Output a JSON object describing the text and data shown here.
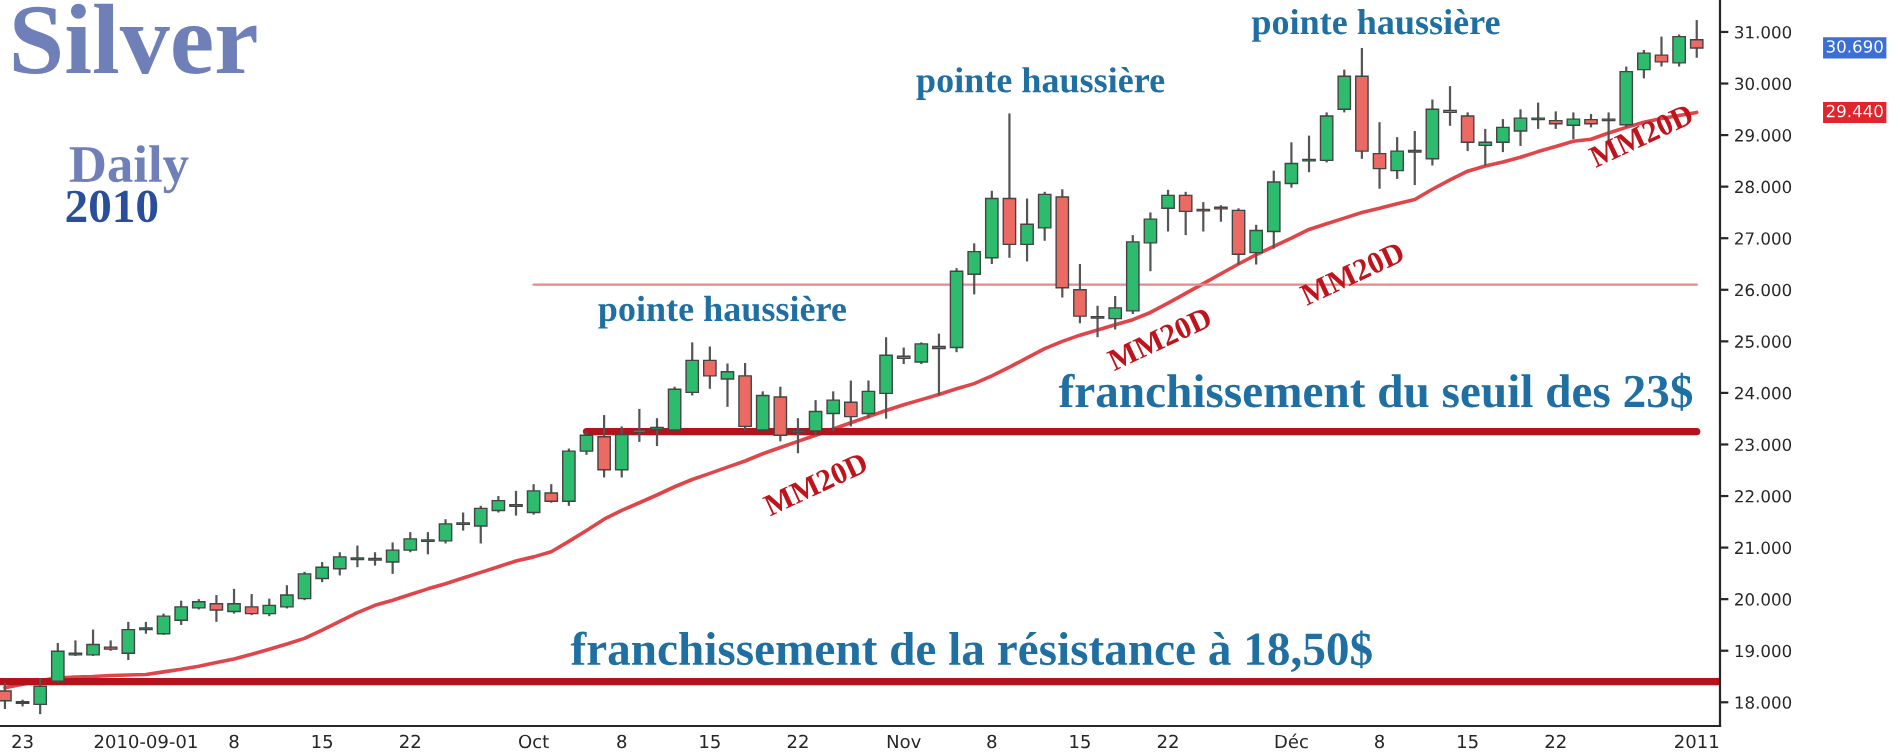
{
  "chart_data": {
    "type": "candlestick",
    "title": "Silver",
    "subtitle": "Daily",
    "categories": [
      null,
      "23",
      null,
      null,
      null,
      null,
      null,
      null,
      "2010-09-01",
      null,
      null,
      null,
      null,
      "8",
      null,
      null,
      null,
      null,
      "15",
      null,
      null,
      null,
      null,
      "22",
      null,
      null,
      null,
      null,
      null,
      null,
      "Oct",
      null,
      null,
      null,
      null,
      "8",
      null,
      null,
      null,
      null,
      "15",
      null,
      null,
      null,
      null,
      "22",
      null,
      null,
      null,
      null,
      null,
      "Nov",
      null,
      null,
      null,
      null,
      "8",
      null,
      null,
      null,
      null,
      "15",
      null,
      null,
      null,
      null,
      "22",
      null,
      null,
      null,
      null,
      null,
      null,
      "Déc",
      null,
      null,
      null,
      null,
      "8",
      null,
      null,
      null,
      null,
      "15",
      null,
      null,
      null,
      null,
      "22",
      null,
      null,
      null,
      null,
      null,
      null,
      null,
      "2011"
    ],
    "ohlc": [
      [
        18.22,
        18.38,
        17.87,
        18.03
      ],
      [
        17.98,
        18.05,
        17.92,
        18.0
      ],
      [
        17.96,
        18.47,
        17.77,
        18.31
      ],
      [
        18.41,
        19.15,
        18.38,
        18.99
      ],
      [
        18.92,
        19.2,
        18.9,
        18.94
      ],
      [
        18.92,
        19.41,
        18.9,
        19.12
      ],
      [
        19.07,
        19.2,
        19.0,
        19.03
      ],
      [
        18.95,
        19.56,
        18.82,
        19.41
      ],
      [
        19.41,
        19.56,
        19.33,
        19.43
      ],
      [
        19.33,
        19.72,
        19.31,
        19.67
      ],
      [
        19.59,
        19.97,
        19.5,
        19.85
      ],
      [
        19.83,
        20.0,
        19.8,
        19.95
      ],
      [
        19.91,
        20.08,
        19.56,
        19.79
      ],
      [
        19.76,
        20.2,
        19.72,
        19.91
      ],
      [
        19.85,
        20.1,
        19.69,
        19.72
      ],
      [
        19.72,
        20.01,
        19.67,
        19.88
      ],
      [
        19.85,
        20.27,
        19.82,
        20.08
      ],
      [
        20.01,
        20.53,
        19.98,
        20.49
      ],
      [
        20.4,
        20.72,
        20.33,
        20.62
      ],
      [
        20.59,
        20.91,
        20.46,
        20.82
      ],
      [
        20.77,
        21.04,
        20.62,
        20.79
      ],
      [
        20.78,
        20.91,
        20.65,
        20.76
      ],
      [
        20.72,
        21.1,
        20.49,
        20.95
      ],
      [
        20.95,
        21.3,
        20.91,
        21.17
      ],
      [
        21.12,
        21.3,
        20.87,
        21.14
      ],
      [
        21.13,
        21.55,
        21.08,
        21.46
      ],
      [
        21.45,
        21.68,
        21.33,
        21.47
      ],
      [
        21.42,
        21.81,
        21.08,
        21.76
      ],
      [
        21.72,
        22.0,
        21.68,
        21.91
      ],
      [
        21.83,
        22.1,
        21.62,
        21.8
      ],
      [
        21.68,
        22.23,
        21.64,
        22.1
      ],
      [
        22.06,
        22.23,
        21.87,
        21.9
      ],
      [
        21.9,
        22.92,
        21.81,
        22.87
      ],
      [
        22.87,
        23.25,
        22.8,
        23.18
      ],
      [
        23.15,
        23.57,
        22.36,
        22.51
      ],
      [
        22.51,
        23.35,
        22.36,
        23.19
      ],
      [
        23.28,
        23.69,
        23.05,
        23.24
      ],
      [
        23.29,
        23.51,
        22.97,
        23.33
      ],
      [
        23.28,
        24.12,
        23.26,
        24.07
      ],
      [
        24.01,
        24.98,
        23.95,
        24.63
      ],
      [
        24.63,
        24.9,
        24.08,
        24.33
      ],
      [
        24.27,
        24.57,
        23.73,
        24.41
      ],
      [
        24.33,
        24.58,
        23.27,
        23.35
      ],
      [
        23.28,
        24.03,
        23.26,
        23.95
      ],
      [
        23.92,
        24.12,
        23.06,
        23.18
      ],
      [
        23.24,
        23.51,
        22.83,
        23.27
      ],
      [
        23.26,
        23.86,
        23.18,
        23.64
      ],
      [
        23.6,
        24.03,
        23.26,
        23.86
      ],
      [
        23.82,
        24.24,
        23.35,
        23.54
      ],
      [
        23.6,
        24.24,
        23.51,
        24.03
      ],
      [
        23.99,
        25.08,
        23.5,
        24.73
      ],
      [
        24.71,
        24.88,
        24.56,
        24.67
      ],
      [
        24.6,
        24.98,
        24.56,
        24.95
      ],
      [
        24.9,
        25.15,
        23.95,
        24.86
      ],
      [
        24.88,
        26.42,
        24.79,
        26.36
      ],
      [
        26.3,
        26.9,
        25.91,
        26.74
      ],
      [
        26.62,
        27.92,
        26.5,
        27.77
      ],
      [
        27.77,
        29.42,
        26.62,
        26.88
      ],
      [
        26.88,
        27.77,
        26.55,
        27.27
      ],
      [
        27.2,
        27.9,
        26.95,
        27.85
      ],
      [
        27.8,
        27.95,
        25.85,
        26.04
      ],
      [
        26.0,
        26.5,
        25.35,
        25.49
      ],
      [
        25.45,
        25.69,
        25.08,
        25.47
      ],
      [
        25.44,
        25.88,
        25.23,
        25.65
      ],
      [
        25.59,
        27.06,
        25.53,
        26.93
      ],
      [
        26.91,
        27.5,
        26.36,
        27.37
      ],
      [
        27.58,
        27.94,
        27.13,
        27.83
      ],
      [
        27.83,
        27.9,
        27.06,
        27.52
      ],
      [
        27.55,
        27.7,
        27.13,
        27.53
      ],
      [
        27.58,
        27.64,
        27.32,
        27.57
      ],
      [
        27.54,
        27.58,
        26.49,
        26.69
      ],
      [
        26.72,
        27.26,
        26.49,
        27.15
      ],
      [
        27.13,
        28.31,
        26.8,
        28.09
      ],
      [
        28.06,
        28.86,
        27.98,
        28.45
      ],
      [
        28.5,
        28.99,
        28.28,
        28.52
      ],
      [
        28.51,
        29.44,
        28.47,
        29.37
      ],
      [
        29.5,
        30.27,
        29.44,
        30.14
      ],
      [
        30.14,
        30.69,
        28.54,
        28.69
      ],
      [
        28.64,
        29.25,
        27.96,
        28.35
      ],
      [
        28.31,
        28.96,
        28.15,
        28.69
      ],
      [
        28.67,
        29.08,
        28.03,
        28.7
      ],
      [
        28.54,
        29.69,
        28.41,
        29.5
      ],
      [
        29.48,
        29.95,
        29.18,
        29.44
      ],
      [
        29.37,
        29.44,
        28.69,
        28.86
      ],
      [
        28.8,
        29.12,
        28.41,
        28.86
      ],
      [
        28.86,
        29.31,
        28.67,
        29.15
      ],
      [
        29.08,
        29.5,
        28.79,
        29.33
      ],
      [
        29.3,
        29.63,
        29.12,
        29.32
      ],
      [
        29.28,
        29.46,
        29.12,
        29.22
      ],
      [
        29.19,
        29.44,
        28.92,
        29.31
      ],
      [
        29.3,
        29.41,
        29.15,
        29.22
      ],
      [
        29.28,
        29.44,
        28.8,
        29.3
      ],
      [
        29.2,
        30.33,
        29.15,
        30.23
      ],
      [
        30.27,
        30.65,
        30.1,
        30.59
      ],
      [
        30.55,
        30.91,
        30.33,
        30.42
      ],
      [
        30.4,
        30.95,
        30.33,
        30.91
      ],
      [
        30.85,
        31.23,
        30.5,
        30.69
      ]
    ],
    "series": [
      {
        "type": "line",
        "color": "#e0454a",
        "values": [
          18.28,
          18.35,
          18.42,
          18.47,
          18.49,
          18.5,
          18.52,
          18.53,
          18.54,
          18.59,
          18.64,
          18.7,
          18.77,
          18.84,
          18.93,
          19.03,
          19.13,
          19.24,
          19.4,
          19.57,
          19.74,
          19.88,
          19.98,
          20.09,
          20.2,
          20.3,
          20.41,
          20.52,
          20.63,
          20.74,
          20.82,
          20.92,
          21.12,
          21.33,
          21.55,
          21.72,
          21.87,
          22.02,
          22.18,
          22.32,
          22.44,
          22.56,
          22.68,
          22.82,
          22.94,
          23.06,
          23.18,
          23.3,
          23.42,
          23.54,
          23.66,
          23.77,
          23.87,
          23.97,
          24.08,
          24.18,
          24.33,
          24.5,
          24.68,
          24.86,
          25.0,
          25.12,
          25.22,
          25.32,
          25.42,
          25.56,
          25.74,
          25.93,
          26.12,
          26.31,
          26.5,
          26.68,
          26.84,
          27.0,
          27.17,
          27.28,
          27.39,
          27.5,
          27.58,
          27.67,
          27.75,
          27.95,
          28.13,
          28.3,
          28.4,
          28.48,
          28.57,
          28.68,
          28.78,
          28.88,
          28.92,
          29.04,
          29.15,
          29.25,
          29.32,
          29.38,
          29.44
        ]
      },
      {
        "type": "line",
        "color": "#b5121b",
        "values": [
          null,
          null,
          null,
          null,
          null,
          null,
          null,
          null,
          null,
          null,
          null,
          null,
          null,
          null,
          null,
          null,
          null,
          null,
          null,
          null,
          null,
          null,
          null,
          null,
          null,
          null,
          null,
          null,
          null,
          null,
          null,
          null,
          null,
          23.25,
          23.25,
          23.25,
          23.25,
          23.25,
          23.25,
          23.25,
          23.25,
          23.25,
          23.25,
          23.25,
          23.25,
          23.25,
          23.25,
          23.25,
          23.25,
          23.25,
          23.25,
          23.25,
          23.25,
          23.25,
          23.25,
          23.25,
          23.25,
          23.25,
          23.25,
          23.25,
          23.25,
          23.25,
          23.25,
          23.25,
          23.25,
          23.25,
          23.25,
          23.25,
          23.25,
          23.25,
          23.25,
          23.25,
          23.25,
          23.25,
          23.25,
          23.25,
          23.25,
          23.25,
          23.25,
          23.25,
          23.25,
          23.25,
          23.25,
          23.25,
          23.25,
          23.25,
          23.25,
          23.25,
          23.25,
          23.25,
          23.25,
          23.25,
          23.25,
          23.25,
          23.25,
          23.25,
          23.25
        ]
      },
      {
        "type": "line",
        "color": "#e58a8a",
        "values": [
          null,
          null,
          null,
          null,
          null,
          null,
          null,
          null,
          null,
          null,
          null,
          null,
          null,
          null,
          null,
          null,
          null,
          null,
          null,
          null,
          null,
          null,
          null,
          null,
          null,
          null,
          null,
          null,
          null,
          null,
          26.1,
          26.1,
          26.1,
          26.1,
          26.1,
          26.1,
          26.1,
          26.1,
          26.1,
          26.1,
          26.1,
          26.1,
          26.1,
          26.1,
          26.1,
          26.1,
          26.1,
          26.1,
          26.1,
          26.1,
          26.1,
          26.1,
          26.1,
          26.1,
          26.1,
          26.1,
          26.1,
          26.1,
          26.1,
          26.1,
          26.1,
          26.1,
          26.1,
          26.1,
          26.1,
          26.1,
          26.1,
          26.1,
          26.1,
          26.1,
          26.1,
          26.1,
          26.1,
          26.1,
          26.1,
          26.1,
          26.1,
          26.1,
          26.1,
          26.1,
          26.1,
          26.1,
          26.1,
          26.1,
          26.1,
          26.1,
          26.1,
          26.1,
          26.1,
          26.1,
          26.1,
          26.1,
          26.1,
          26.1,
          26.1,
          26.1,
          26.1
        ]
      }
    ],
    "ref_lines": [
      {
        "axis": "y",
        "value": 18.4,
        "color": "#b5121b"
      }
    ],
    "ylim": [
      17.54,
      31.62
    ],
    "yticks": [
      {
        "value": 18,
        "label": "18.000"
      },
      {
        "value": 19,
        "label": "19.000"
      },
      {
        "value": 20,
        "label": "20.000"
      },
      {
        "value": 21,
        "label": "21.000"
      },
      {
        "value": 22,
        "label": "22.000"
      },
      {
        "value": 23,
        "label": "23.000"
      },
      {
        "value": 24,
        "label": "24.000"
      },
      {
        "value": 25,
        "label": "25.000"
      },
      {
        "value": 26,
        "label": "26.000"
      },
      {
        "value": 27,
        "label": "27.000"
      },
      {
        "value": 28,
        "label": "28.000"
      },
      {
        "value": 29,
        "label": "29.000"
      },
      {
        "value": 30,
        "label": "30.000"
      },
      {
        "value": 31,
        "label": "31.000"
      }
    ],
    "grid": false,
    "legend": false,
    "annotations": [
      "2010",
      "pointe haussière",
      "pointe haussière",
      "pointe haussière",
      "MM20D",
      "MM20D",
      "MM20D",
      "MM20D",
      "franchissement du seuil des 23$",
      "franchissement de la résistance à 18,50$",
      "30.690",
      "29.440"
    ]
  }
}
